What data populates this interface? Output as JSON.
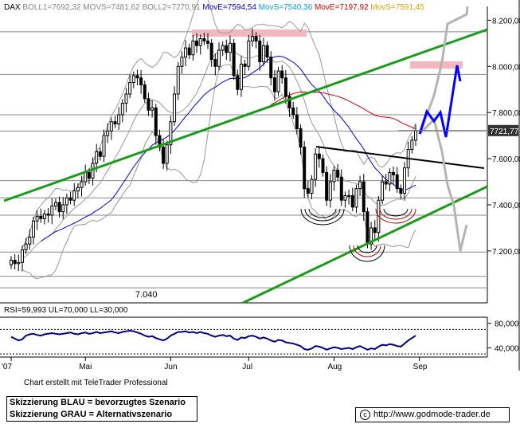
{
  "chart_data": {
    "type": "candlestick",
    "instrument": "DAX",
    "header": {
      "symbol": "DAX",
      "boll1": "BOLL1=7692,32",
      "movs1": "MOVS=7481,62",
      "boll2": "BOLL2=7270,91",
      "move1": "MovE=7594,54",
      "movs2": "MovS=7540,36",
      "move2": "MovE=7197,92",
      "movs3": "MovS=7591,45"
    },
    "colors": {
      "move1": "#0000cc",
      "movs2": "#00a0e0",
      "move2": "#cc0000",
      "movs3": "#e0a000",
      "trend": "#1a9b1a",
      "scenario_blue": "#0000ff",
      "scenario_gray": "#b4b4b4",
      "target_zone": "#f4b6c0"
    },
    "y_axis": {
      "range": [
        6975,
        8260
      ],
      "ticks": [
        7200,
        7400,
        7600,
        7800,
        8000,
        8200
      ],
      "tick_labels": [
        "7.200,00",
        "7.400,00",
        "7.600,00",
        "7.800,00",
        "8.000,00",
        "8.200,00"
      ]
    },
    "x_axis": {
      "labels": [
        "'07",
        "Mai",
        "Jun",
        "Jul",
        "Aug",
        "Sep"
      ],
      "label_days": [
        0,
        20,
        43,
        64,
        87,
        110
      ]
    },
    "last_price": 7721.77,
    "last_price_label": "7721,77",
    "support_label": "7.040",
    "support_level": 7040,
    "horizontal_levels": [
      8150,
      7965,
      7790,
      7720,
      7505,
      7430,
      7355,
      7195,
      7090,
      7040
    ],
    "closes": [
      7160,
      7145,
      7150,
      7205,
      7230,
      7260,
      7330,
      7350,
      7340,
      7360,
      7355,
      7395,
      7410,
      7370,
      7400,
      7430,
      7420,
      7460,
      7475,
      7500,
      7540,
      7515,
      7580,
      7630,
      7610,
      7700,
      7720,
      7760,
      7750,
      7790,
      7840,
      7880,
      7930,
      7960,
      7950,
      7920,
      7860,
      7810,
      7820,
      7700,
      7650,
      7580,
      7660,
      7760,
      7880,
      8000,
      8040,
      8080,
      8050,
      8110,
      8090,
      8120,
      8110,
      8100,
      8030,
      8000,
      8070,
      8090,
      8060,
      8100,
      7960,
      7900,
      8010,
      8000,
      8110,
      8130,
      8110,
      8020,
      8090,
      8040,
      7950,
      7890,
      7980,
      7950,
      7870,
      7820,
      7790,
      7730,
      7650,
      7470,
      7450,
      7510,
      7620,
      7600,
      7540,
      7420,
      7500,
      7550,
      7520,
      7420,
      7440,
      7440,
      7390,
      7470,
      7500,
      7370,
      7230,
      7300,
      7280,
      7420,
      7500,
      7490,
      7540,
      7530,
      7470,
      7450,
      7560,
      7640,
      7680,
      7722
    ],
    "rsi": {
      "label": "RSI=59,993 UL=70,000 LL=30,000",
      "ul": 70,
      "ll": 30,
      "range": [
        25,
        90
      ],
      "ticks": [
        40,
        80
      ],
      "tick_labels": [
        "40,000",
        "80,000"
      ],
      "values": [
        58,
        55,
        52,
        54,
        60,
        62,
        63,
        61,
        60,
        62,
        63,
        64,
        63,
        62,
        63,
        64,
        65,
        63,
        62,
        64,
        65,
        63,
        64,
        66,
        64,
        65,
        66,
        67,
        65,
        64,
        66,
        67,
        68,
        67,
        65,
        63,
        60,
        58,
        59,
        56,
        54,
        52,
        55,
        60,
        63,
        66,
        66,
        67,
        65,
        66,
        64,
        66,
        64,
        63,
        60,
        58,
        60,
        61,
        59,
        60,
        55,
        53,
        57,
        56,
        59,
        60,
        58,
        55,
        57,
        55,
        52,
        50,
        53,
        52,
        49,
        48,
        47,
        45,
        43,
        38,
        37,
        39,
        43,
        42,
        40,
        37,
        39,
        41,
        40,
        38,
        39,
        40,
        38,
        41,
        43,
        40,
        37,
        39,
        38,
        42,
        45,
        44,
        46,
        45,
        43,
        42,
        47,
        52,
        56,
        60
      ]
    }
  },
  "footer": {
    "credit": "Chart erstellt mit TeleTrader Professional",
    "legend_blue": "Skizzierung BLAU = bevorzugtes Szenario",
    "legend_gray": "Skizzierung GRAU = Alternativszenario",
    "copyright": "http://www.godmode-trader.de",
    "copyright_symbol": "c"
  }
}
